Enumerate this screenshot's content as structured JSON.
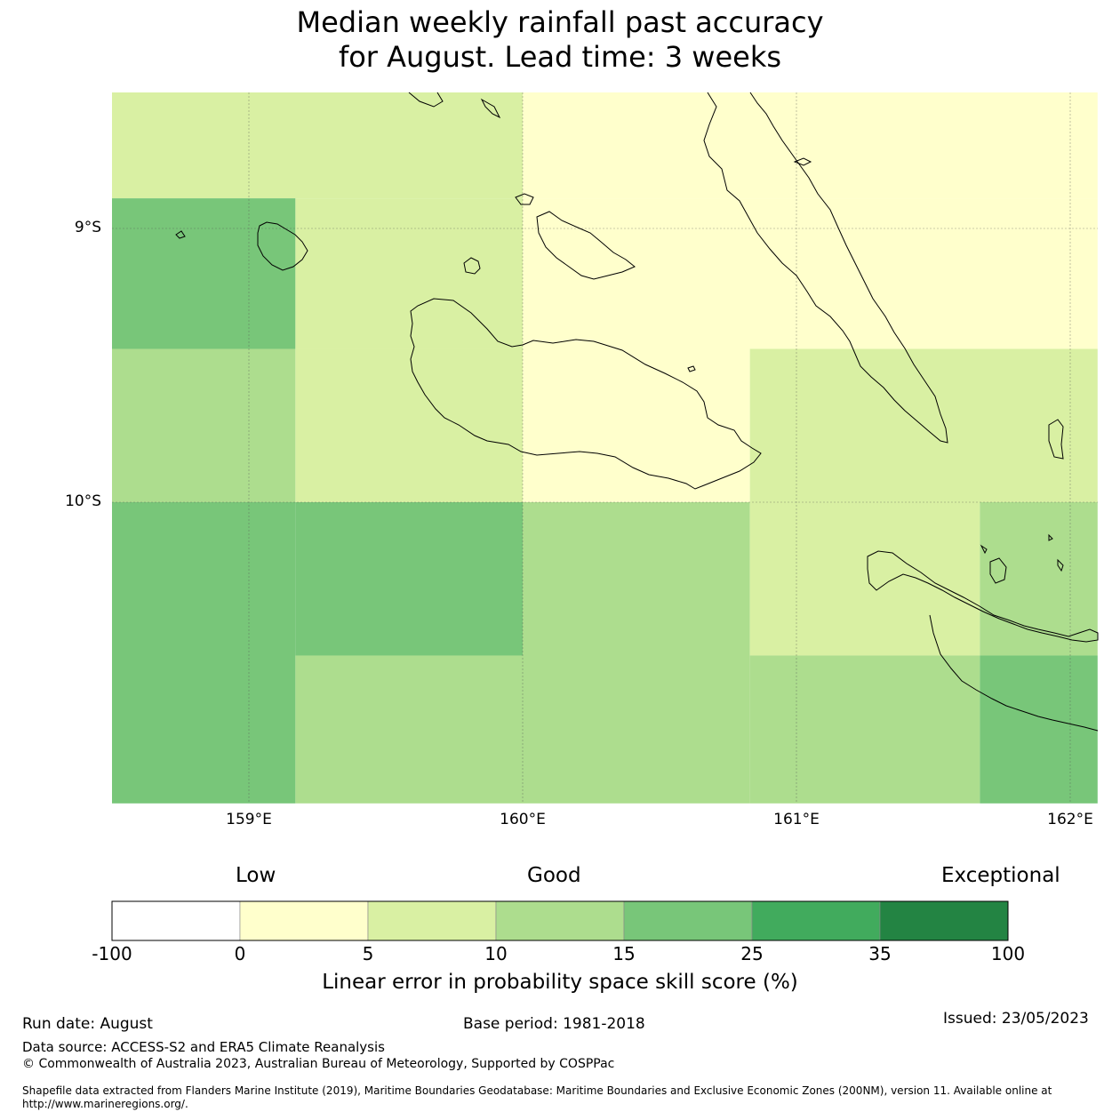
{
  "title": {
    "line1": "Median weekly rainfall past accuracy",
    "line2": "for August. Lead time: 3 weeks"
  },
  "map": {
    "lat_labels": [
      "9°S",
      "10°S"
    ],
    "lon_labels": [
      "159°E",
      "160°E",
      "161°E",
      "162°E"
    ],
    "extent": {
      "lon_min": 158.5,
      "lon_max": 162.1,
      "lat_north": -8.5,
      "lat_south": -11.1
    },
    "grid_cells": [
      {
        "lon_min": 158.5,
        "lon_max": 160.0,
        "lat_top": -8.5,
        "lat_bottom": -8.89,
        "class": "5-10"
      },
      {
        "lon_min": 160.0,
        "lon_max": 162.1,
        "lat_top": -8.5,
        "lat_bottom": -8.89,
        "class": "0-5"
      },
      {
        "lon_min": 158.5,
        "lon_max": 159.17,
        "lat_top": -8.89,
        "lat_bottom": -9.44,
        "class": "15-25"
      },
      {
        "lon_min": 159.17,
        "lon_max": 160.0,
        "lat_top": -8.89,
        "lat_bottom": -9.44,
        "class": "5-10"
      },
      {
        "lon_min": 160.0,
        "lon_max": 162.1,
        "lat_top": -8.89,
        "lat_bottom": -9.44,
        "class": "0-5"
      },
      {
        "lon_min": 158.5,
        "lon_max": 159.17,
        "lat_top": -9.44,
        "lat_bottom": -10.0,
        "class": "10-15"
      },
      {
        "lon_min": 159.17,
        "lon_max": 160.0,
        "lat_top": -9.44,
        "lat_bottom": -10.0,
        "class": "5-10"
      },
      {
        "lon_min": 160.0,
        "lon_max": 160.83,
        "lat_top": -9.44,
        "lat_bottom": -10.0,
        "class": "0-5"
      },
      {
        "lon_min": 160.83,
        "lon_max": 162.1,
        "lat_top": -9.44,
        "lat_bottom": -10.0,
        "class": "5-10"
      },
      {
        "lon_min": 158.5,
        "lon_max": 159.17,
        "lat_top": -10.0,
        "lat_bottom": -11.1,
        "class": "15-25"
      },
      {
        "lon_min": 159.17,
        "lon_max": 160.0,
        "lat_top": -10.0,
        "lat_bottom": -10.56,
        "class": "15-25"
      },
      {
        "lon_min": 159.17,
        "lon_max": 160.0,
        "lat_top": -10.56,
        "lat_bottom": -11.1,
        "class": "10-15"
      },
      {
        "lon_min": 160.0,
        "lon_max": 160.83,
        "lat_top": -10.0,
        "lat_bottom": -11.1,
        "class": "10-15"
      },
      {
        "lon_min": 160.83,
        "lon_max": 161.67,
        "lat_top": -10.0,
        "lat_bottom": -10.56,
        "class": "5-10"
      },
      {
        "lon_min": 160.83,
        "lon_max": 161.67,
        "lat_top": -10.56,
        "lat_bottom": -11.1,
        "class": "10-15"
      },
      {
        "lon_min": 161.67,
        "lon_max": 162.1,
        "lat_top": -10.0,
        "lat_bottom": -10.56,
        "class": "10-15"
      },
      {
        "lon_min": 161.67,
        "lon_max": 162.1,
        "lat_top": -10.56,
        "lat_bottom": -11.1,
        "class": "15-25"
      }
    ]
  },
  "colorbar": {
    "categories": [
      "Low",
      "Good",
      "Exceptional"
    ],
    "ticks": [
      "-100",
      "0",
      "5",
      "10",
      "15",
      "25",
      "35",
      "100"
    ],
    "bins": [
      {
        "range": "-100 to 0",
        "color": "#ffffff"
      },
      {
        "range": "0 to 5",
        "color": "#ffffcc"
      },
      {
        "range": "5 to 10",
        "color": "#d9f0a3"
      },
      {
        "range": "10 to 15",
        "color": "#addd8e"
      },
      {
        "range": "15 to 25",
        "color": "#78c679"
      },
      {
        "range": "25 to 35",
        "color": "#41ab5d"
      },
      {
        "range": "35 to 100",
        "color": "#238443"
      }
    ],
    "label": "Linear error in probability space skill score (%)"
  },
  "footer": {
    "run_date": "Run date: August",
    "base_period": "Base period: 1981-2018",
    "issued": "Issued: 23/05/2023",
    "data_source": "Data source: ACCESS-S2 and ERA5 Climate Reanalysis",
    "copyright": "© Commonwealth of Australia 2023, Australian Bureau of Meteorology, Supported by COSPPac",
    "shapefile_line1": "Shapefile data extracted from Flanders Marine Institute (2019), Maritime Boundaries Geodatabase: Maritime Boundaries and Exclusive Economic Zones (200NM), version 11. Available online at",
    "shapefile_line2": "http://www.marineregions.org/."
  }
}
